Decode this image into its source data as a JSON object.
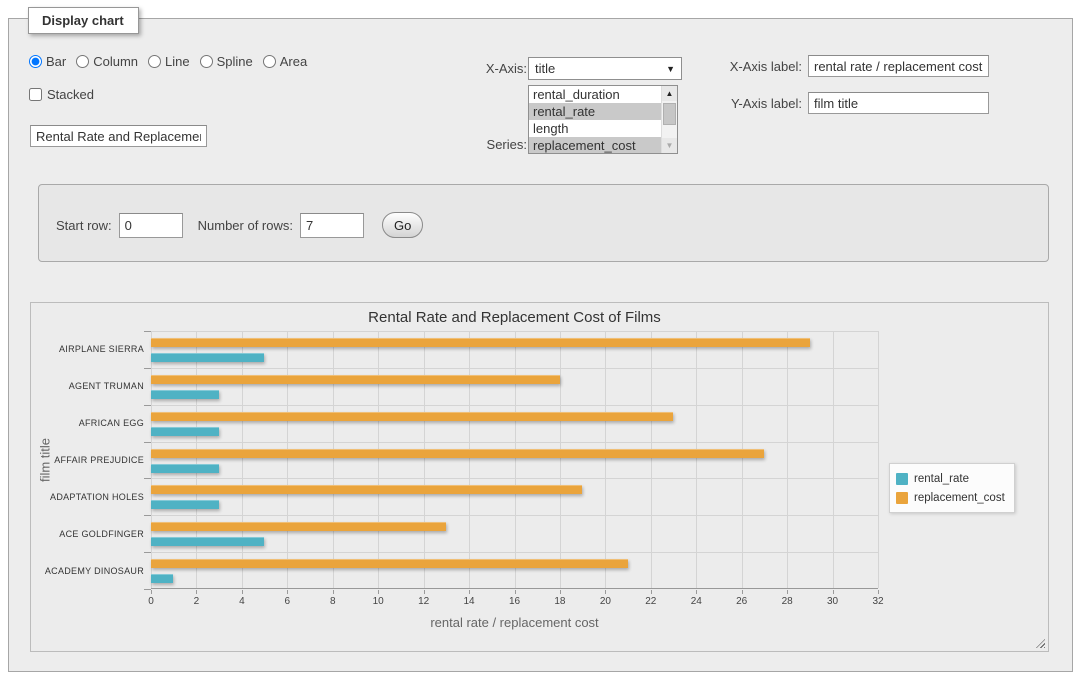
{
  "panel": {
    "legend_title": "Display chart"
  },
  "chart_type": {
    "options": [
      "Bar",
      "Column",
      "Line",
      "Spline",
      "Area"
    ],
    "selected": "Bar"
  },
  "stacked": {
    "label": "Stacked",
    "checked": false
  },
  "title_input": {
    "value": "Rental Rate and Replacement Cost of Films"
  },
  "x_axis": {
    "label": "X-Axis:",
    "selected": "title"
  },
  "series_select": {
    "label": "Series:",
    "options": [
      {
        "label": "rental_duration",
        "selected": false
      },
      {
        "label": "rental_rate",
        "selected": true
      },
      {
        "label": "length",
        "selected": false
      },
      {
        "label": "replacement_cost",
        "selected": true
      }
    ]
  },
  "x_axis_label": {
    "label": "X-Axis label:",
    "value": "rental rate / replacement cost"
  },
  "y_axis_label": {
    "label": "Y-Axis label:",
    "value": "film title"
  },
  "row_controls": {
    "start_row_label": "Start row:",
    "start_row_value": "0",
    "num_rows_label": "Number of rows:",
    "num_rows_value": "7",
    "go_label": "Go"
  },
  "chart_data": {
    "type": "bar",
    "title": "Rental Rate and Replacement Cost of Films",
    "xlabel": "rental rate / replacement cost",
    "ylabel": "film title",
    "categories": [
      "AIRPLANE SIERRA",
      "AGENT TRUMAN",
      "AFRICAN EGG",
      "AFFAIR PREJUDICE",
      "ADAPTATION HOLES",
      "ACE GOLDFINGER",
      "ACADEMY DINOSAUR"
    ],
    "series": [
      {
        "name": "rental_rate",
        "color": "#4FB2C4",
        "values": [
          4.99,
          2.99,
          2.99,
          2.99,
          2.99,
          4.99,
          0.99
        ]
      },
      {
        "name": "replacement_cost",
        "color": "#EAA43C",
        "values": [
          28.99,
          17.99,
          22.99,
          26.99,
          18.99,
          12.99,
          20.99
        ]
      }
    ],
    "xlim": [
      0,
      32
    ],
    "x_ticks": [
      0,
      2,
      4,
      6,
      8,
      10,
      12,
      14,
      16,
      18,
      20,
      22,
      24,
      26,
      28,
      30,
      32
    ],
    "grid": true,
    "legend_position": "right",
    "background": "#ececec"
  }
}
